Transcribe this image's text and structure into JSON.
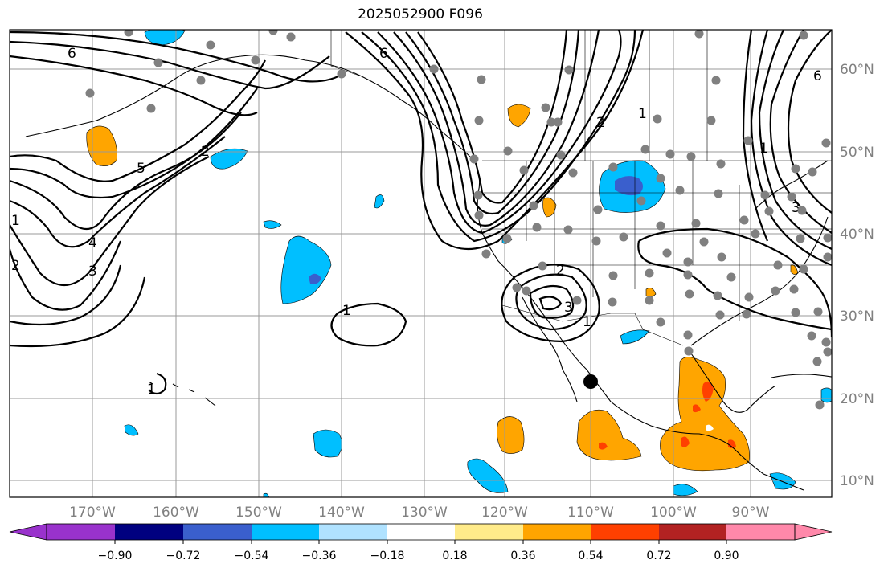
{
  "title": "2025052900 F096",
  "lon_labels": [
    "170°W",
    "160°W",
    "150°W",
    "140°W",
    "130°W",
    "120°W",
    "110°W",
    "100°W",
    "90°W"
  ],
  "lat_labels": [
    "60°N",
    "50°N",
    "40°N",
    "30°N",
    "20°N",
    "10°N"
  ],
  "colorbar": {
    "ticks": [
      "−0.90",
      "−0.72",
      "−0.54",
      "−0.36",
      "−0.18",
      "0.18",
      "0.36",
      "0.54",
      "0.72",
      "0.90"
    ],
    "colors": [
      "#9932cc",
      "#000080",
      "#3a5fcd",
      "#00bfff",
      "#b0e2ff",
      "#ffffff",
      "#ffeb8a",
      "#ffa500",
      "#ff4000",
      "#b22222",
      "#ff88aa"
    ]
  },
  "contour_labels": [
    "6",
    "5",
    "2",
    "4",
    "3",
    "2",
    "1",
    "6",
    "1",
    "2",
    "3",
    "1",
    "6",
    "1",
    "3",
    "2",
    "1",
    "1"
  ],
  "colors": {
    "grid": "#999999",
    "contour": "#000000",
    "station": "#808080"
  }
}
